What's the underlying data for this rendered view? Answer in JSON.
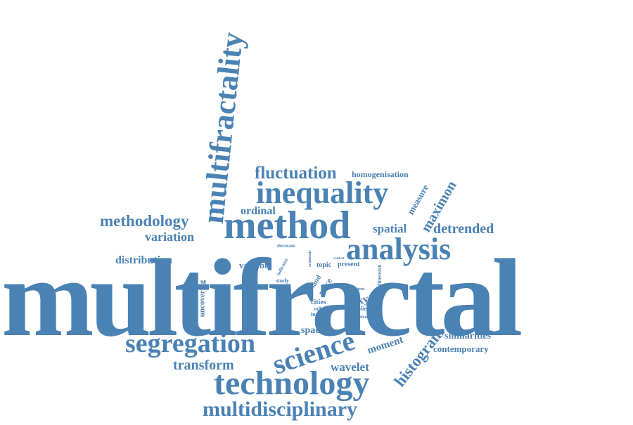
{
  "color": "#4a82b4",
  "words": {
    "multifractal": "multifractal",
    "multifractality": "multifractality",
    "method": "method",
    "inequality": "inequality",
    "analysis": "analysis",
    "technology": "technology",
    "science": "science",
    "segregation": "segregation",
    "multidisciplinary": "multidisciplinary",
    "fluctuation": "fluctuation",
    "homogenisation": "homogenisation",
    "methodology": "methodology",
    "variation": "variation",
    "ordinal": "ordinal",
    "measure": "measure",
    "maximon": "maximon",
    "spatial": "spatial",
    "detrended": "detrended",
    "distribution": "distribution",
    "variable": "variable",
    "decrease": "decrease",
    "indicator": "indicator",
    "economic": "economic",
    "topic": "topic",
    "context": "context",
    "present": "present",
    "uncovering": "uncovering",
    "study": "study",
    "area": "area",
    "land": "land",
    "price": "price",
    "london": "london",
    "century": "century",
    "dataset": "dataset",
    "cities": "cities",
    "urban": "urban",
    "income": "income",
    "system": "system",
    "dimension": "dimension",
    "kyoto": "kyoto",
    "applied": "applied",
    "particular": "particular",
    "space": "space",
    "transform": "transform",
    "moment": "moment",
    "wavelet": "wavelet",
    "histogram": "histogram",
    "similarities": "similarities",
    "contemporary": "contemporary"
  }
}
